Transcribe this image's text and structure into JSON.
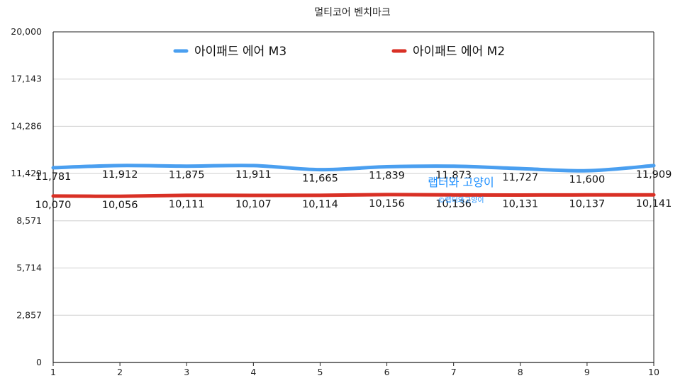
{
  "chart_data": {
    "type": "line",
    "title": "멀티코어 벤치마크",
    "x": [
      "1",
      "2",
      "3",
      "4",
      "5",
      "6",
      "7",
      "8",
      "9",
      "10"
    ],
    "y_ticks": [
      "0",
      "2,857",
      "5,714",
      "8,571",
      "11,429",
      "14,286",
      "17,143",
      "20,000"
    ],
    "ylim": [
      0,
      20000
    ],
    "grid": true,
    "legend_position": "top",
    "series": [
      {
        "name": "아이패드 에어 M3",
        "color": "#4a9ff0",
        "values": [
          11781,
          11912,
          11875,
          11911,
          11665,
          11839,
          11873,
          11727,
          11600,
          11909
        ],
        "labels": [
          "11,781",
          "11,912",
          "11,875",
          "11,911",
          "11,665",
          "11,839",
          "11,873",
          "11,727",
          "11,600",
          "11,909"
        ]
      },
      {
        "name": "아이패드 에어 M2",
        "color": "#d93025",
        "values": [
          10070,
          10056,
          10111,
          10107,
          10114,
          10156,
          10136,
          10131,
          10137,
          10141
        ],
        "labels": [
          "10,070",
          "10,056",
          "10,111",
          "10,107",
          "10,114",
          "10,156",
          "10,136",
          "10,131",
          "10,137",
          "10,141"
        ]
      }
    ],
    "watermark": {
      "main": "랩터와 고양이",
      "sub": "©랩터와고양이"
    }
  }
}
